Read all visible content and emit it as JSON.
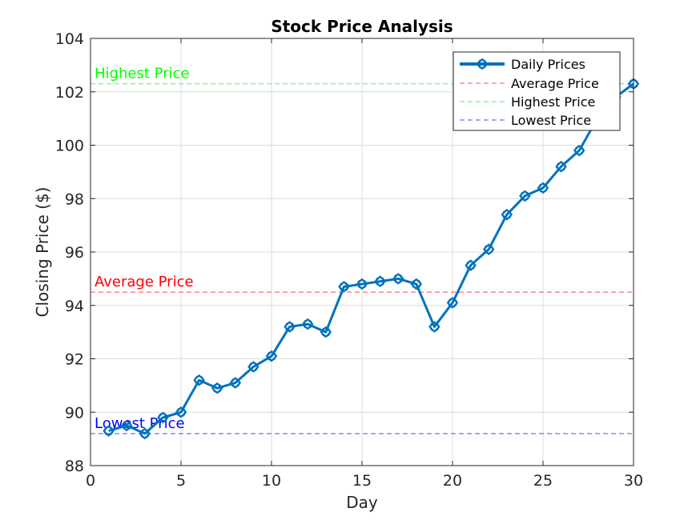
{
  "chart_data": {
    "type": "line",
    "title": "Stock Price Analysis",
    "xlabel": "Day",
    "ylabel": "Closing Price ($)",
    "xlim": [
      0,
      30
    ],
    "ylim": [
      88,
      104
    ],
    "xticks": [
      0,
      5,
      10,
      15,
      20,
      25,
      30
    ],
    "yticks": [
      88,
      90,
      92,
      94,
      96,
      98,
      100,
      102,
      104
    ],
    "grid": true,
    "legend_position": "top-right",
    "series": [
      {
        "name": "Daily Prices",
        "color": "#0072BD",
        "marker": "diamond-circle",
        "x": [
          1,
          2,
          3,
          4,
          5,
          6,
          7,
          8,
          9,
          10,
          11,
          12,
          13,
          14,
          15,
          16,
          17,
          18,
          19,
          20,
          21,
          22,
          23,
          24,
          25,
          26,
          27,
          28,
          29,
          30
        ],
        "y": [
          89.3,
          89.5,
          89.2,
          89.8,
          90.0,
          91.2,
          90.9,
          91.1,
          91.7,
          92.1,
          93.2,
          93.3,
          93.0,
          94.7,
          94.8,
          94.9,
          95.0,
          94.8,
          93.2,
          94.1,
          95.5,
          96.1,
          97.4,
          98.1,
          98.4,
          99.2,
          99.8,
          101.0,
          101.8,
          102.3
        ]
      }
    ],
    "reference_lines": [
      {
        "name": "Average Price",
        "label": "Average Price",
        "value": 94.5,
        "color": "#ff0000",
        "dash": "dashed"
      },
      {
        "name": "Highest Price",
        "label": "Highest Price",
        "value": 102.3,
        "color": "#00ff00",
        "dash": "dashed"
      },
      {
        "name": "Lowest Price",
        "label": "Lowest Price",
        "value": 89.2,
        "color": "#0000ff",
        "dash": "dashed"
      }
    ],
    "legend": [
      "Daily Prices",
      "Average Price",
      "Highest Price",
      "Lowest Price"
    ]
  }
}
